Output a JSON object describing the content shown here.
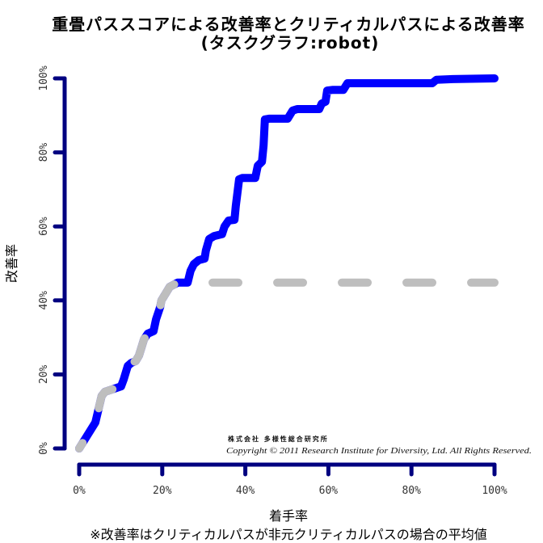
{
  "chart_data": {
    "type": "line",
    "title": "重畳パススコアによる改善率とクリティカルパスによる改善率",
    "subtitle": "(タスクグラフ:robot)",
    "xlabel": "着手率",
    "ylabel": "改善率",
    "note": "※改善率はクリティカルパスが非元クリティカルパスの場合の平均値",
    "xlim": [
      0,
      100
    ],
    "ylim": [
      0,
      100
    ],
    "x_ticks": [
      0,
      20,
      40,
      60,
      80,
      100
    ],
    "x_tick_labels": [
      "0%",
      "20%",
      "40%",
      "60%",
      "80%",
      "100%"
    ],
    "y_ticks": [
      0,
      20,
      40,
      60,
      80,
      100
    ],
    "y_tick_labels": [
      "0%",
      "20%",
      "40%",
      "60%",
      "80%",
      "100%"
    ],
    "grid": false,
    "legend": false,
    "axis_color": "#000080",
    "series": [
      {
        "color": "#0000ff",
        "dashed": false,
        "x": [
          0,
          3.9,
          5.4,
          6.2,
          9.1,
          10.1,
          10.7,
          11.7,
          12.5,
          13.6,
          14.4,
          15.6,
          16.5,
          17.9,
          18.5,
          19.5,
          19.8,
          21.8,
          23.7,
          26.1,
          26.8,
          27.6,
          28.8,
          30.2,
          30.5,
          31.3,
          32.5,
          34.4,
          35.0,
          36.0,
          37.4,
          37.7,
          38.5,
          39.3,
          42.4,
          43.0,
          44.0,
          44.4,
          44.7,
          45.7,
          50.2,
          51.4,
          52.5,
          57.8,
          58.4,
          59.3,
          59.7,
          61.1,
          63.6,
          64.6,
          66.5,
          85.0,
          86.0,
          89.9,
          100
        ],
        "y": [
          0,
          7.0,
          14.2,
          15.3,
          16.4,
          16.8,
          18.6,
          22.3,
          23.1,
          23.6,
          25.1,
          29.5,
          31.0,
          31.7,
          34.9,
          38.2,
          40.0,
          43.7,
          44.8,
          44.8,
          48.0,
          49.8,
          50.9,
          51.3,
          53.5,
          56.6,
          57.4,
          57.9,
          60.0,
          61.6,
          61.8,
          65.5,
          72.7,
          73.1,
          73.1,
          76.4,
          77.5,
          81.9,
          88.9,
          89.1,
          89.1,
          91.3,
          91.7,
          91.7,
          93.2,
          93.7,
          96.7,
          96.9,
          96.9,
          98.7,
          98.7,
          98.7,
          99.6,
          99.8,
          100
        ]
      },
      {
        "color": "#bebebe",
        "dashed": true,
        "x": [
          0,
          3.9,
          5.4,
          6.2,
          9.1,
          10.1,
          10.7,
          11.7,
          12.5,
          13.6,
          14.4,
          15.6,
          16.5,
          17.9,
          18.5,
          19.5,
          19.8,
          21.8,
          23.7,
          100
        ],
        "y": [
          0,
          7.0,
          14.2,
          15.3,
          16.4,
          16.8,
          18.6,
          22.3,
          23.1,
          23.6,
          25.1,
          29.5,
          31.0,
          31.7,
          34.9,
          38.2,
          40.0,
          43.7,
          44.8,
          44.8
        ]
      }
    ]
  },
  "watermark": {
    "company": "株式会社 多様性総合研究所",
    "copyright": "Copyright © 2011 Research Institute for Diversity, Ltd. All Rights Reserved."
  }
}
